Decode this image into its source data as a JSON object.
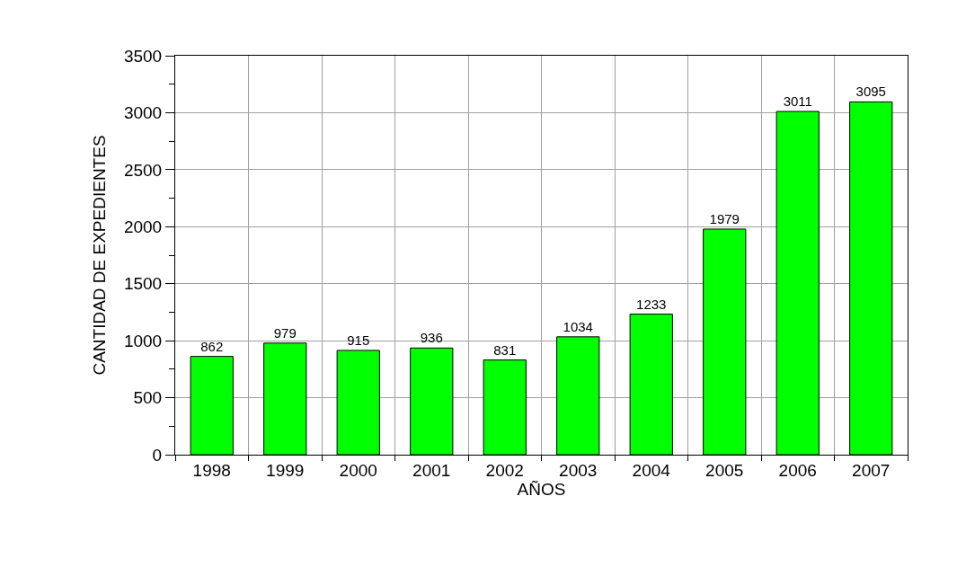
{
  "chart_data": {
    "type": "bar",
    "xlabel": "AÑOS",
    "ylabel": "CANTIDAD DE EXPEDIENTES",
    "categories": [
      "1998",
      "1999",
      "2000",
      "2001",
      "2002",
      "2003",
      "2004",
      "2005",
      "2006",
      "2007"
    ],
    "values": [
      862,
      979,
      915,
      936,
      831,
      1034,
      1233,
      1979,
      3011,
      3095
    ],
    "color": "#00ff00",
    "data_labels": true,
    "grid": true,
    "ylim": [
      0,
      3500
    ],
    "yticks": [
      0,
      {
        "value": 250,
        "label": null
      },
      500,
      {
        "value": 750,
        "label": null
      },
      1000,
      {
        "value": 1250,
        "label": null
      },
      1500,
      {
        "value": 1750,
        "label": null
      },
      2000,
      {
        "value": 2250,
        "label": null
      },
      2500,
      {
        "value": 2750,
        "label": null
      },
      3000,
      {
        "value": 3250,
        "label": null
      },
      3500
    ]
  }
}
